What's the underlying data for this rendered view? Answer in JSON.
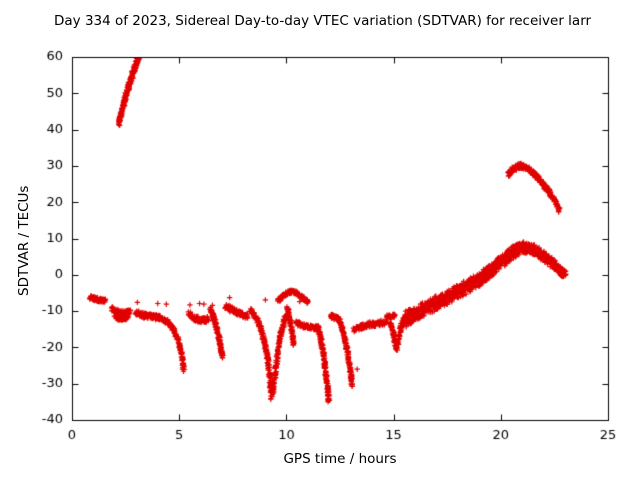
{
  "chart_data": {
    "type": "scatter",
    "title": "Day 334 of 2023, Sidereal Day-to-day VTEC variation (SDTVAR) for receiver larr",
    "xlabel": "GPS time / hours",
    "ylabel": "SDTVAR / TECUs",
    "xlim": [
      0,
      25
    ],
    "ylim": [
      -40,
      60
    ],
    "xticks": [
      0,
      5,
      10,
      15,
      20,
      25
    ],
    "yticks": [
      -40,
      -30,
      -20,
      -10,
      0,
      10,
      20,
      30,
      40,
      50,
      60
    ],
    "grid": false,
    "legend": "none",
    "marker": "plus",
    "color": "#e00000",
    "axis_color": "#000000",
    "background": "#ffffff",
    "series": [
      {
        "name": "steep-rise",
        "samples": 220,
        "jitter": 0.8,
        "points": [
          [
            2.18,
            41.5
          ],
          [
            2.32,
            45
          ],
          [
            2.46,
            48.2
          ],
          [
            2.6,
            51
          ],
          [
            2.74,
            53.6
          ],
          [
            2.88,
            56.2
          ],
          [
            3.0,
            58.2
          ],
          [
            3.12,
            60.2
          ]
        ]
      },
      {
        "name": "blob-early",
        "samples": 90,
        "jitter": 0.5,
        "points": [
          [
            0.85,
            -6.2
          ],
          [
            1.05,
            -6.6
          ],
          [
            1.3,
            -7.0
          ],
          [
            1.55,
            -7.2
          ]
        ]
      },
      {
        "name": "blob-2a",
        "samples": 110,
        "jitter": 0.6,
        "points": [
          [
            1.85,
            -9.3
          ],
          [
            2.1,
            -10.2
          ],
          [
            2.4,
            -10.6
          ],
          [
            2.7,
            -10.3
          ]
        ]
      },
      {
        "name": "blob-2b",
        "samples": 70,
        "jitter": 0.5,
        "points": [
          [
            2.0,
            -11.6
          ],
          [
            2.3,
            -12.1
          ],
          [
            2.6,
            -11.7
          ]
        ]
      },
      {
        "name": "band-3",
        "samples": 110,
        "jitter": 0.7,
        "points": [
          [
            2.95,
            -10.2
          ],
          [
            3.35,
            -11.2
          ],
          [
            3.75,
            -11.6
          ],
          [
            4.1,
            -11.8
          ]
        ]
      },
      {
        "name": "descent-1",
        "samples": 150,
        "jitter": 0.6,
        "points": [
          [
            4.12,
            -11.8
          ],
          [
            4.45,
            -13
          ],
          [
            4.72,
            -15
          ],
          [
            4.95,
            -18
          ],
          [
            5.1,
            -21.5
          ],
          [
            5.2,
            -26
          ]
        ]
      },
      {
        "name": "band-4",
        "samples": 100,
        "jitter": 0.7,
        "points": [
          [
            5.45,
            -10.8
          ],
          [
            5.75,
            -12
          ],
          [
            6.05,
            -12.6
          ],
          [
            6.35,
            -12.2
          ]
        ]
      },
      {
        "name": "descent-2",
        "samples": 120,
        "jitter": 0.5,
        "points": [
          [
            6.45,
            -9.2
          ],
          [
            6.6,
            -11.5
          ],
          [
            6.72,
            -14
          ],
          [
            6.84,
            -17
          ],
          [
            6.94,
            -20
          ],
          [
            7.02,
            -22.5
          ]
        ]
      },
      {
        "name": "band-5",
        "samples": 100,
        "jitter": 0.7,
        "points": [
          [
            7.15,
            -8.6
          ],
          [
            7.5,
            -9.8
          ],
          [
            7.85,
            -10.8
          ],
          [
            8.2,
            -11.4
          ]
        ]
      },
      {
        "name": "descent-3",
        "samples": 170,
        "jitter": 0.6,
        "points": [
          [
            8.3,
            -9.5
          ],
          [
            8.6,
            -12
          ],
          [
            8.82,
            -15
          ],
          [
            9.0,
            -19
          ],
          [
            9.12,
            -23
          ],
          [
            9.22,
            -28
          ],
          [
            9.3,
            -33.8
          ]
        ]
      },
      {
        "name": "rise-after-dip",
        "samples": 130,
        "jitter": 0.6,
        "points": [
          [
            9.36,
            -33
          ],
          [
            9.48,
            -27
          ],
          [
            9.6,
            -21.5
          ],
          [
            9.72,
            -17
          ],
          [
            9.86,
            -13.5
          ],
          [
            10.0,
            -11.2
          ]
        ]
      },
      {
        "name": "hump",
        "samples": 120,
        "jitter": 0.5,
        "points": [
          [
            9.6,
            -7.2
          ],
          [
            9.9,
            -5.6
          ],
          [
            10.2,
            -4.6
          ],
          [
            10.5,
            -5.0
          ],
          [
            10.8,
            -6.4
          ],
          [
            11.0,
            -7.6
          ]
        ]
      },
      {
        "name": "mid-dip",
        "samples": 70,
        "jitter": 0.5,
        "points": [
          [
            10.05,
            -9
          ],
          [
            10.15,
            -12
          ],
          [
            10.25,
            -15.5
          ],
          [
            10.35,
            -19.5
          ]
        ]
      },
      {
        "name": "band-6",
        "samples": 90,
        "jitter": 0.6,
        "points": [
          [
            10.45,
            -13.2
          ],
          [
            10.85,
            -14.2
          ],
          [
            11.2,
            -14.6
          ],
          [
            11.5,
            -14.6
          ]
        ]
      },
      {
        "name": "descent-4",
        "samples": 150,
        "jitter": 0.5,
        "points": [
          [
            11.48,
            -14.6
          ],
          [
            11.62,
            -18
          ],
          [
            11.74,
            -22
          ],
          [
            11.84,
            -27
          ],
          [
            11.92,
            -31
          ],
          [
            11.98,
            -35
          ]
        ]
      },
      {
        "name": "band-7",
        "samples": 50,
        "jitter": 0.5,
        "points": [
          [
            12.05,
            -11.3
          ],
          [
            12.25,
            -11.8
          ],
          [
            12.42,
            -12.1
          ]
        ]
      },
      {
        "name": "descent-5",
        "samples": 130,
        "jitter": 0.5,
        "points": [
          [
            12.45,
            -12.2
          ],
          [
            12.62,
            -15
          ],
          [
            12.78,
            -19
          ],
          [
            12.9,
            -23
          ],
          [
            13.0,
            -27
          ],
          [
            13.07,
            -30.5
          ]
        ]
      },
      {
        "name": "band-8",
        "samples": 110,
        "jitter": 0.7,
        "points": [
          [
            13.15,
            -15.2
          ],
          [
            13.5,
            -14.3
          ],
          [
            13.9,
            -13.6
          ],
          [
            14.3,
            -13.4
          ],
          [
            14.7,
            -12.9
          ]
        ]
      },
      {
        "name": "band-9",
        "samples": 40,
        "jitter": 0.4,
        "points": [
          [
            14.7,
            -11.4
          ],
          [
            14.9,
            -11.6
          ],
          [
            15.05,
            -11.2
          ]
        ]
      },
      {
        "name": "dip-15",
        "samples": 60,
        "jitter": 0.5,
        "points": [
          [
            14.85,
            -13
          ],
          [
            14.98,
            -16
          ],
          [
            15.08,
            -18.8
          ],
          [
            15.16,
            -20.6
          ]
        ]
      },
      {
        "name": "rise-15",
        "samples": 60,
        "jitter": 0.5,
        "points": [
          [
            15.2,
            -19.5
          ],
          [
            15.3,
            -15.5
          ],
          [
            15.42,
            -13
          ],
          [
            15.55,
            -11.8
          ]
        ]
      },
      {
        "name": "rise-main-a",
        "samples": 240,
        "jitter": 1.0,
        "points": [
          [
            15.5,
            -12.2
          ],
          [
            16.1,
            -10.3
          ],
          [
            16.7,
            -8.4
          ],
          [
            17.3,
            -6.6
          ],
          [
            17.9,
            -4.8
          ],
          [
            18.5,
            -2.8
          ],
          [
            19.1,
            -0.6
          ],
          [
            19.6,
            1.8
          ],
          [
            20.0,
            4.0
          ]
        ]
      },
      {
        "name": "rise-main-b",
        "samples": 240,
        "jitter": 1.0,
        "points": [
          [
            15.6,
            -11
          ],
          [
            16.2,
            -9.2
          ],
          [
            16.8,
            -7.4
          ],
          [
            17.4,
            -5.6
          ],
          [
            18.0,
            -3.8
          ],
          [
            18.6,
            -1.8
          ],
          [
            19.2,
            0.4
          ],
          [
            19.7,
            2.8
          ],
          [
            20.05,
            4.8
          ]
        ]
      },
      {
        "name": "rise-main-c",
        "samples": 240,
        "jitter": 1.0,
        "points": [
          [
            15.55,
            -13.4
          ],
          [
            16.15,
            -11.4
          ],
          [
            16.75,
            -9.4
          ],
          [
            17.35,
            -7.6
          ],
          [
            17.95,
            -5.8
          ],
          [
            18.55,
            -3.8
          ],
          [
            19.15,
            -1.6
          ],
          [
            19.65,
            0.8
          ],
          [
            20.0,
            3.2
          ]
        ]
      },
      {
        "name": "peak-a",
        "samples": 220,
        "jitter": 0.8,
        "points": [
          [
            20.0,
            4.2
          ],
          [
            20.35,
            6.2
          ],
          [
            20.7,
            7.6
          ],
          [
            21.0,
            8.4
          ],
          [
            21.3,
            8.2
          ],
          [
            21.7,
            7.0
          ],
          [
            22.1,
            5.4
          ],
          [
            22.5,
            3.4
          ],
          [
            22.85,
            1.2
          ],
          [
            23.0,
            0.2
          ]
        ]
      },
      {
        "name": "peak-b",
        "samples": 180,
        "jitter": 0.8,
        "points": [
          [
            20.15,
            3.2
          ],
          [
            20.55,
            5.2
          ],
          [
            20.95,
            6.6
          ],
          [
            21.35,
            6.8
          ],
          [
            21.75,
            5.6
          ],
          [
            22.15,
            3.8
          ],
          [
            22.55,
            2.0
          ],
          [
            22.9,
            0.0
          ]
        ]
      },
      {
        "name": "arc-top-right",
        "samples": 230,
        "jitter": 0.7,
        "points": [
          [
            20.35,
            27.6
          ],
          [
            20.6,
            29.2
          ],
          [
            20.85,
            30.0
          ],
          [
            21.1,
            29.8
          ],
          [
            21.4,
            28.6
          ],
          [
            21.75,
            26.6
          ],
          [
            22.1,
            24.0
          ],
          [
            22.45,
            21.0
          ],
          [
            22.75,
            17.6
          ]
        ]
      },
      {
        "name": "outliers",
        "samples": 0,
        "jitter": 0,
        "points": [
          [
            3.05,
            -7.6
          ],
          [
            4.0,
            -7.9
          ],
          [
            4.4,
            -8.1
          ],
          [
            5.5,
            -8.3
          ],
          [
            5.95,
            -7.9
          ],
          [
            6.15,
            -8.1
          ],
          [
            6.55,
            -8.4
          ],
          [
            7.35,
            -6.3
          ],
          [
            9.02,
            -6.9
          ],
          [
            10.62,
            -7.4
          ],
          [
            12.12,
            -10.9
          ],
          [
            13.3,
            -26.0
          ]
        ]
      }
    ]
  }
}
